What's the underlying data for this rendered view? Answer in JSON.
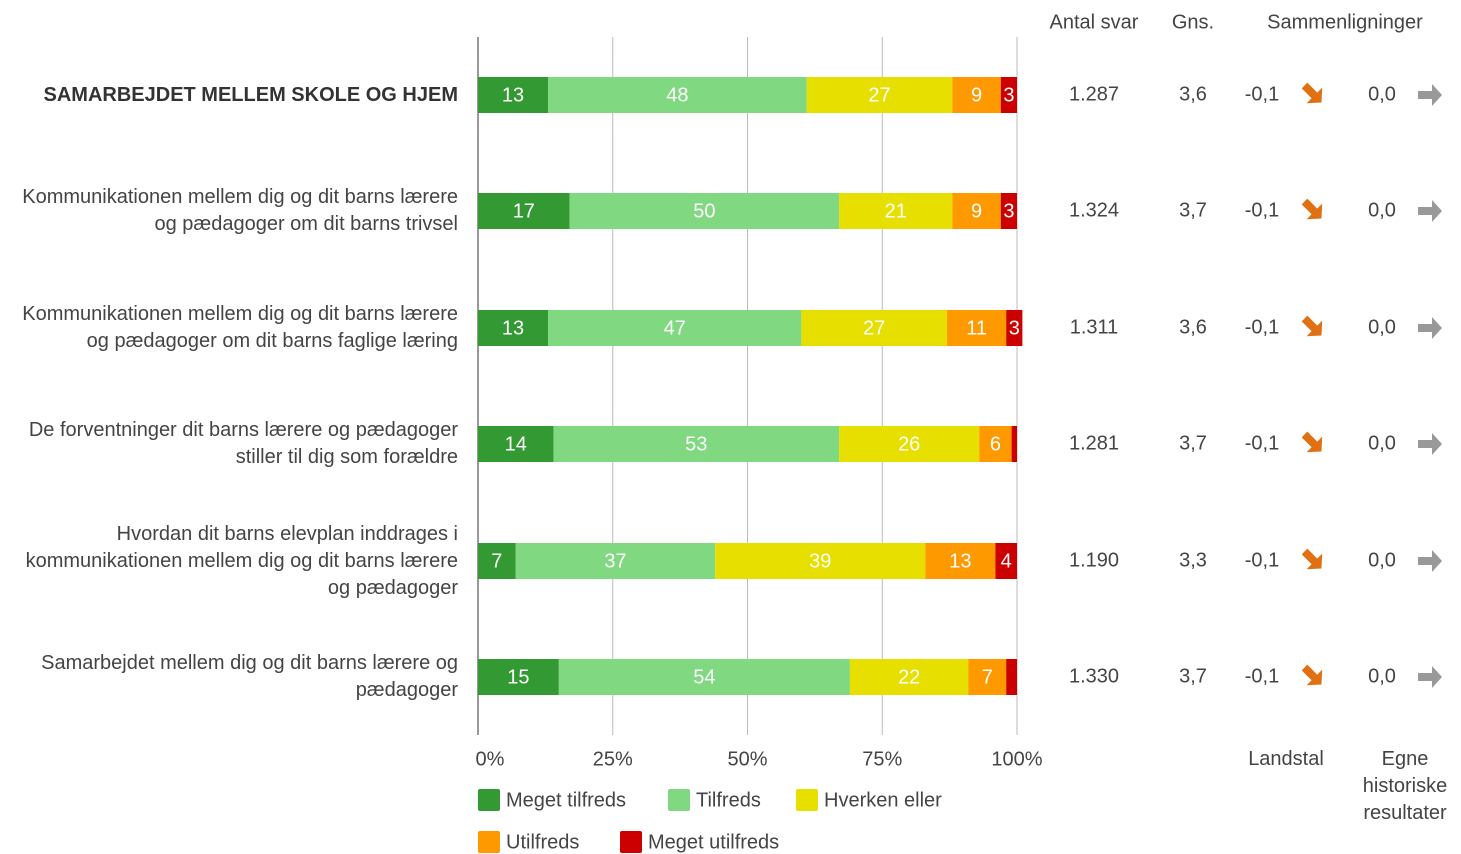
{
  "chart_data": {
    "type": "stacked-bar",
    "orientation": "horizontal",
    "categories": [
      "SAMARBEJDET MELLEM SKOLE OG HJEM",
      "Kommunikationen mellem dig og dit barns lærere og pædagoger om dit barns trivsel",
      "Kommunikationen mellem dig og dit barns lærere og pædagoger om dit barns faglige læring",
      "De forventninger dit barns lærere og pædagoger stiller til dig som forældre",
      "Hvordan dit barns elevplan inddrages i kommunikationen mellem dig og dit barns lærere og pædagoger",
      "Samarbejdet mellem dig og dit barns lærere og pædagoger"
    ],
    "series": [
      {
        "name": "Meget tilfreds",
        "color": "#339933",
        "values": [
          13,
          17,
          13,
          14,
          7,
          15
        ]
      },
      {
        "name": "Tilfreds",
        "color": "#80d880",
        "values": [
          48,
          50,
          47,
          53,
          37,
          54
        ]
      },
      {
        "name": "Hverken eller",
        "color": "#e6df00",
        "values": [
          27,
          21,
          27,
          26,
          39,
          22
        ]
      },
      {
        "name": "Utilfreds",
        "color": "#ff9900",
        "values": [
          9,
          9,
          11,
          6,
          13,
          7
        ]
      },
      {
        "name": "Meget utilfreds",
        "color": "#cc0000",
        "values": [
          3,
          3,
          3,
          1,
          4,
          2
        ]
      }
    ],
    "xlim": [
      0,
      100
    ],
    "xticks": [
      {
        "value": 0,
        "label": "0%"
      },
      {
        "value": 25,
        "label": "25%"
      },
      {
        "value": 50,
        "label": "50%"
      },
      {
        "value": 75,
        "label": "75%"
      },
      {
        "value": 100,
        "label": "100%"
      }
    ],
    "grid": true,
    "table": {
      "headers": [
        "Antal svar",
        "Gns.",
        "Sammenligninger"
      ],
      "antal": [
        "1.287",
        "1.324",
        "1.311",
        "1.281",
        "1.190",
        "1.330"
      ],
      "gns": [
        "3,6",
        "3,7",
        "3,6",
        "3,7",
        "3,3",
        "3,7"
      ],
      "landstal": [
        "-0,1",
        "-0,1",
        "-0,1",
        "-0,1",
        "-0,1",
        "-0,1"
      ],
      "historisk": [
        "0,0",
        "0,0",
        "0,0",
        "0,0",
        "0,0",
        "0,0"
      ],
      "footers": [
        "Landstal",
        "Egne historiske resultater"
      ]
    }
  }
}
